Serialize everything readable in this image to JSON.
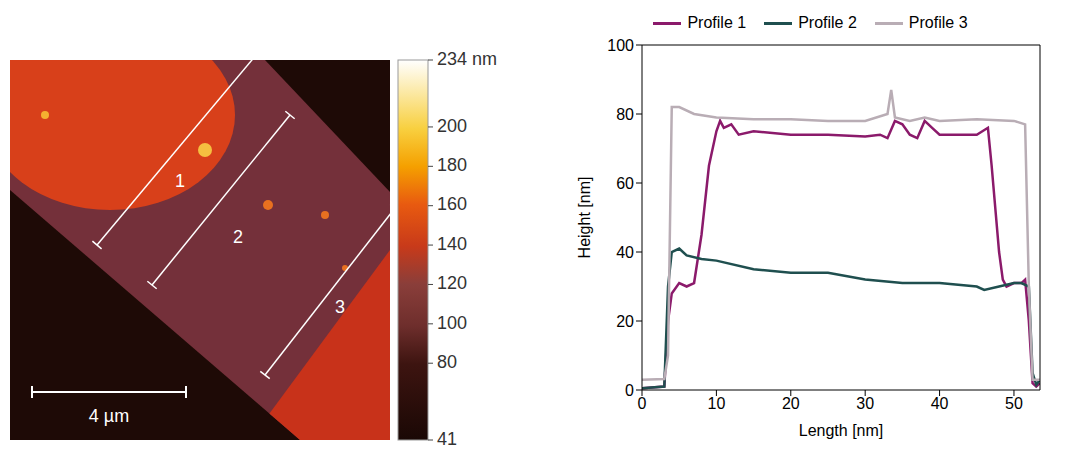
{
  "chart_data": [
    {
      "type": "image",
      "colorbar": {
        "range": [
          41,
          234
        ],
        "ticks": [
          41,
          80,
          100,
          120,
          140,
          160,
          180,
          200,
          {
            "value": 234,
            "label": "234 nm"
          }
        ]
      },
      "profile_labels": [
        "1",
        "2",
        "3"
      ],
      "scale_bar": "4 µm"
    },
    {
      "type": "line",
      "xlabel": "Length [nm]",
      "ylabel": "Height [nm]",
      "xlim": [
        0,
        53.5
      ],
      "xticks": [
        0,
        10,
        20,
        30,
        40,
        50
      ],
      "ylim": [
        0,
        100
      ],
      "yticks": [
        0,
        20,
        40,
        60,
        80,
        100
      ],
      "legend": "top",
      "series": [
        {
          "name": "Profile 1",
          "color": "#8b1a6b",
          "x": [
            0,
            3,
            3.5,
            4,
            5,
            6,
            7,
            8,
            9,
            10,
            10.5,
            11,
            12,
            13,
            15,
            20,
            25,
            30,
            32,
            33,
            34,
            35,
            36,
            37,
            38,
            39,
            40,
            42,
            45,
            46.5,
            47,
            48,
            48.5,
            49,
            50,
            51,
            51.5,
            52,
            52.5,
            53,
            53.5
          ],
          "values": [
            0.5,
            1,
            20,
            28,
            31,
            30,
            31,
            45,
            65,
            75,
            78,
            76,
            77,
            74,
            75,
            74,
            74,
            73.5,
            74,
            73,
            78,
            77,
            74,
            73,
            78,
            76,
            74,
            74,
            74,
            76,
            65,
            40,
            32,
            30,
            31,
            31,
            32,
            20,
            2,
            1,
            2
          ]
        },
        {
          "name": "Profile 2",
          "color": "#1f4f4f",
          "x": [
            0,
            3,
            3.5,
            4,
            5,
            6,
            8,
            10,
            15,
            20,
            25,
            30,
            35,
            40,
            45,
            46,
            48,
            50,
            51,
            52,
            52.5,
            53,
            53.5
          ],
          "values": [
            0.5,
            1,
            30,
            40,
            41,
            39,
            38,
            37.5,
            35,
            34,
            34,
            32,
            31,
            31,
            30,
            29,
            30,
            31,
            31,
            30,
            5,
            1.5,
            3
          ]
        },
        {
          "name": "Profile 3",
          "color": "#b9adb5",
          "x": [
            0,
            3,
            3.5,
            4,
            5,
            7,
            10,
            15,
            20,
            25,
            30,
            33,
            33.5,
            34,
            36,
            38,
            40,
            45,
            50,
            51.5,
            52,
            52.5,
            53,
            53.5
          ],
          "values": [
            3,
            3.2,
            10,
            82,
            82,
            80,
            79,
            78.5,
            78.5,
            78,
            78,
            80,
            87,
            79,
            78,
            79,
            78,
            78.5,
            78,
            77,
            30,
            3,
            3,
            3
          ]
        }
      ]
    }
  ]
}
